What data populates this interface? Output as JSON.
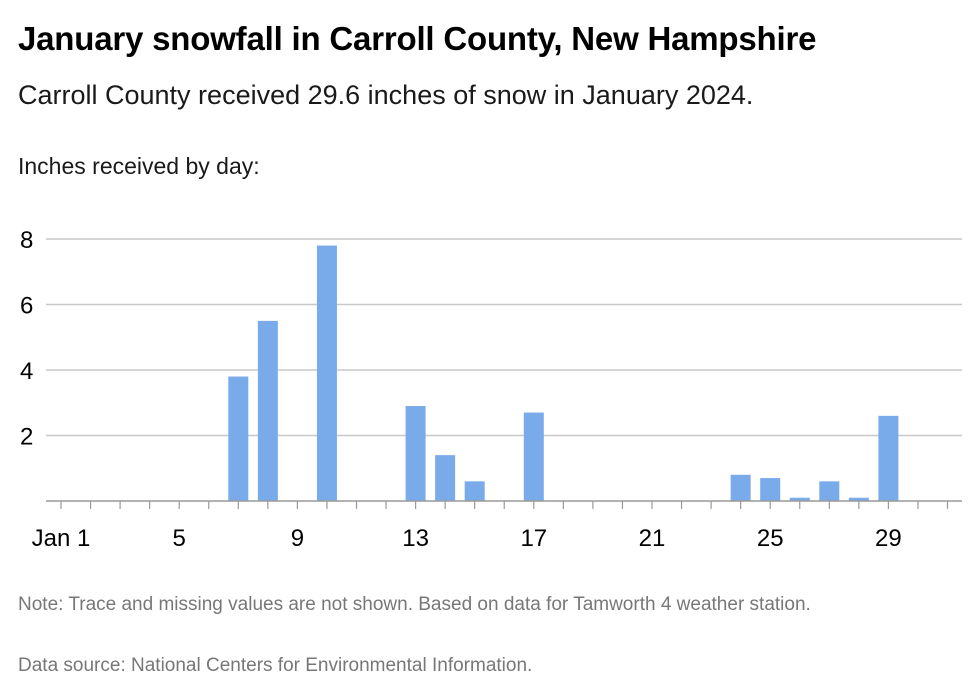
{
  "title": "January snowfall in Carroll County, New Hampshire",
  "subtitle": "Carroll County received 29.6 inches of snow in January 2024.",
  "chart_label": "Inches received by day:",
  "note": "Note: Trace and missing values are not shown. Based on data for Tamworth 4 weather station.",
  "source": "Data source: National Centers for Environmental Information.",
  "colors": {
    "bar": "#79aaea",
    "grid": "#c8c8c8",
    "axis": "#999999",
    "muted_text": "#777777"
  },
  "chart_data": {
    "type": "bar",
    "title": "January snowfall in Carroll County, New Hampshire",
    "subtitle": "Carroll County received 29.6 inches of snow in January 2024.",
    "ylabel": "Inches received by day:",
    "xlabel": "",
    "x_domain": [
      1,
      31
    ],
    "ylim": [
      0,
      8
    ],
    "y_ticks": [
      2,
      4,
      6,
      8
    ],
    "x_ticks": [
      {
        "day": 1,
        "label": "Jan 1"
      },
      {
        "day": 5,
        "label": "5"
      },
      {
        "day": 9,
        "label": "9"
      },
      {
        "day": 13,
        "label": "13"
      },
      {
        "day": 17,
        "label": "17"
      },
      {
        "day": 21,
        "label": "21"
      },
      {
        "day": 25,
        "label": "25"
      },
      {
        "day": 29,
        "label": "29"
      }
    ],
    "grid": true,
    "series": [
      {
        "values": [
          {
            "day": 7,
            "value": 3.8
          },
          {
            "day": 8,
            "value": 5.5
          },
          {
            "day": 10,
            "value": 7.8
          },
          {
            "day": 13,
            "value": 2.9
          },
          {
            "day": 14,
            "value": 1.4
          },
          {
            "day": 15,
            "value": 0.6
          },
          {
            "day": 17,
            "value": 2.7
          },
          {
            "day": 24,
            "value": 0.8
          },
          {
            "day": 25,
            "value": 0.7
          },
          {
            "day": 26,
            "value": 0.1
          },
          {
            "day": 27,
            "value": 0.6
          },
          {
            "day": 28,
            "value": 0.1
          },
          {
            "day": 29,
            "value": 2.6
          }
        ]
      }
    ]
  }
}
